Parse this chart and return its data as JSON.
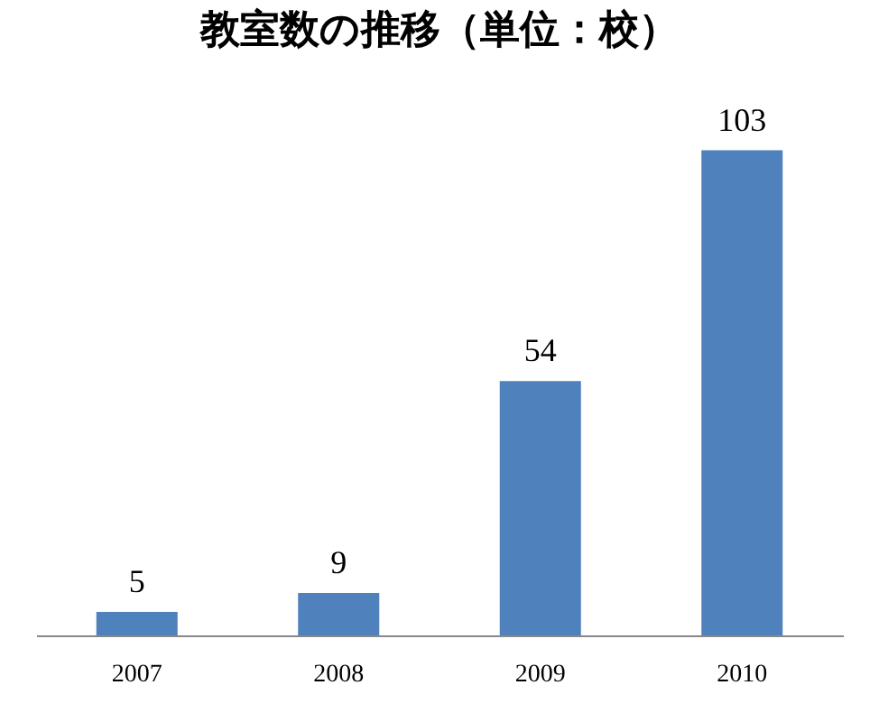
{
  "chart_data": {
    "type": "bar",
    "title": "教室数の推移（単位：校）",
    "categories": [
      "2007",
      "2008",
      "2009",
      "2010"
    ],
    "values": [
      5,
      9,
      54,
      103
    ],
    "color": "#4f81bd",
    "data_labels": true
  }
}
